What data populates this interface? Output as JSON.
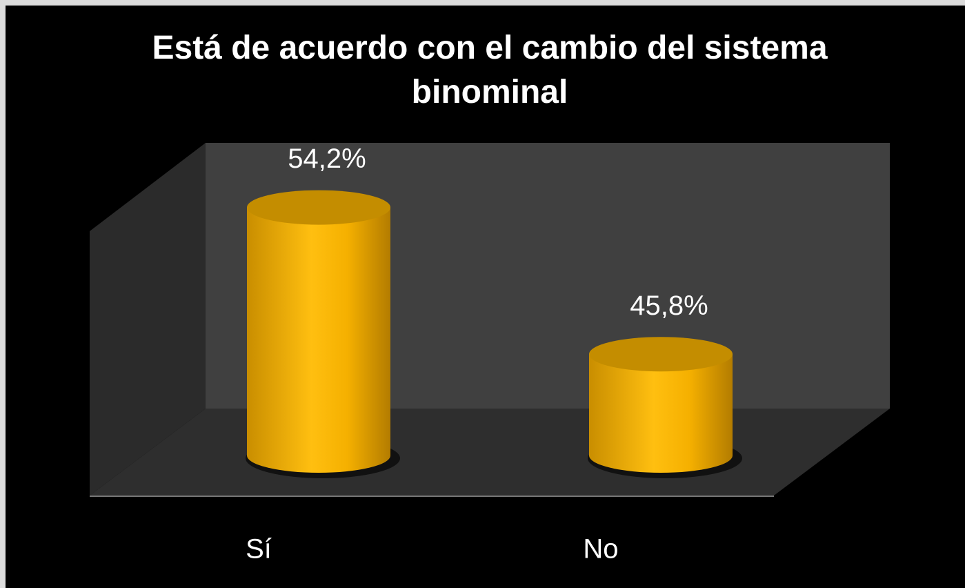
{
  "chart_data": {
    "type": "bar3d",
    "title": "Está de acuerdo con el cambio del sistema binominal",
    "categories": [
      "Sí",
      "No"
    ],
    "values": [
      54.2,
      45.8
    ],
    "value_labels": [
      "54,2%",
      "45,8%"
    ],
    "color": "#f5b000",
    "ylim": [
      40,
      56
    ]
  }
}
